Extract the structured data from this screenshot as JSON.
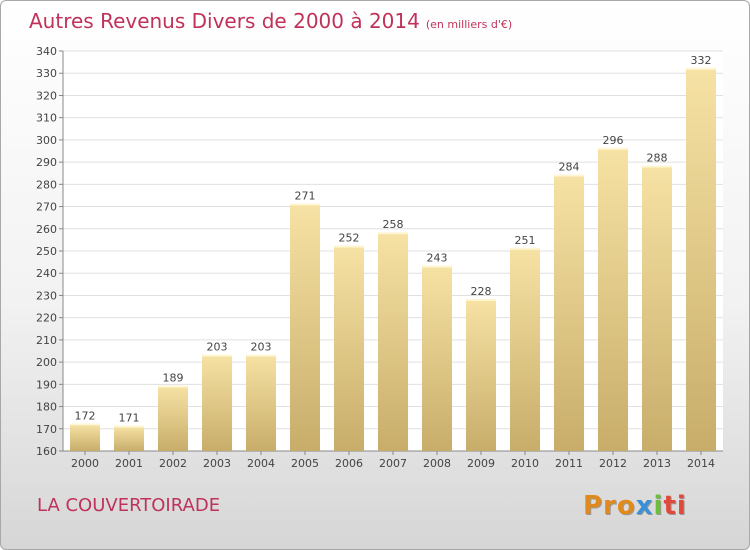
{
  "title": "Autres Revenus Divers de 2000 à 2014",
  "unit": "(en milliers d'€)",
  "commune": "LA COUVERTOIRADE",
  "logo": {
    "p1": "Pro",
    "p2": "x",
    "p3": "i",
    "p4": "ti"
  },
  "colors": {
    "title": "#c0325a",
    "bar_top": "#f6e2a4",
    "bar_bottom": "#c8ad6a",
    "grid": "#e0e0e0"
  },
  "chart_data": {
    "type": "bar",
    "categories": [
      "2000",
      "2001",
      "2002",
      "2003",
      "2004",
      "2005",
      "2006",
      "2007",
      "2008",
      "2009",
      "2010",
      "2011",
      "2012",
      "2013",
      "2014"
    ],
    "values": [
      172,
      171,
      189,
      203,
      203,
      271,
      252,
      258,
      243,
      228,
      251,
      284,
      296,
      288,
      332
    ],
    "data_labels": [
      "172",
      "171",
      "189",
      "203",
      "203",
      "271",
      "252",
      "258",
      "243",
      "228",
      "251",
      "284",
      "296",
      "288",
      "332"
    ],
    "ylim": [
      160,
      340
    ],
    "yticks": [
      "160",
      "170",
      "180",
      "190",
      "200",
      "210",
      "220",
      "230",
      "240",
      "250",
      "260",
      "270",
      "280",
      "290",
      "300",
      "310",
      "320",
      "330",
      "340"
    ],
    "grid": true
  }
}
